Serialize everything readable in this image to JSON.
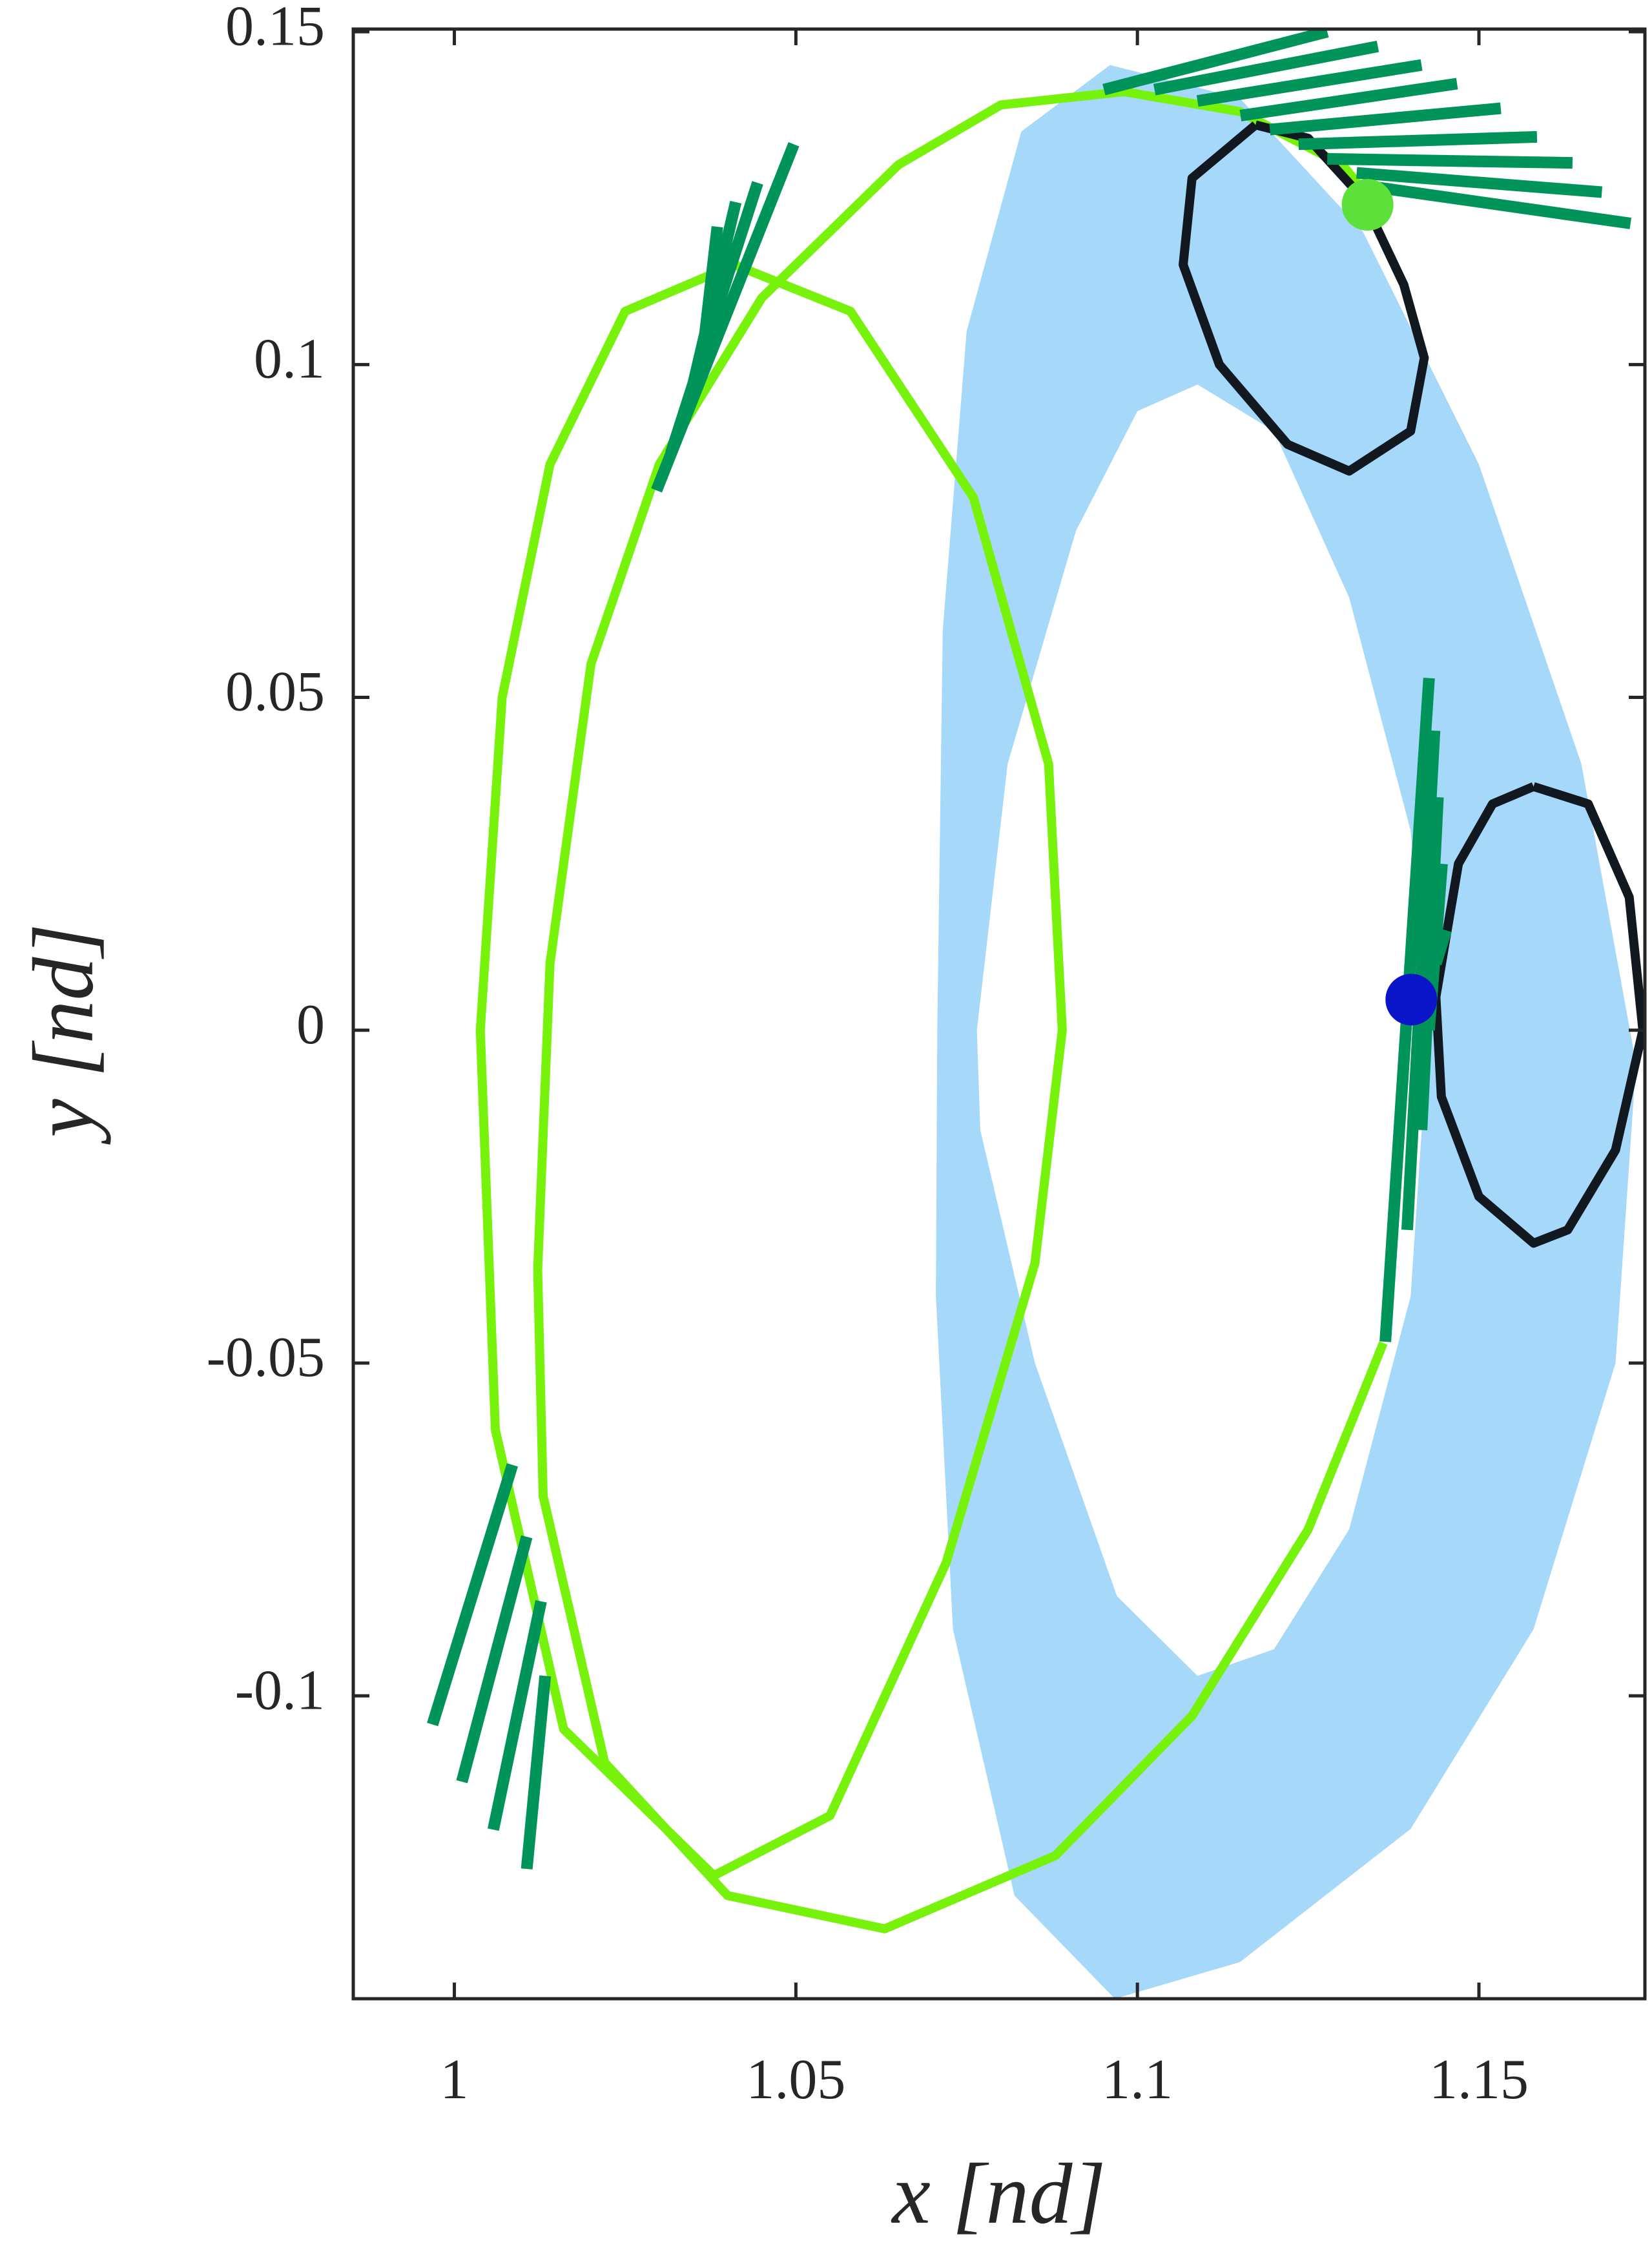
{
  "chart_data": {
    "type": "line",
    "xlabel": "x [nd]",
    "ylabel": "y [nd]",
    "xlim": [
      0.9852,
      1.1743
    ],
    "ylim": [
      -0.1455,
      0.1504
    ],
    "xticks": [
      1,
      1.05,
      1.1,
      1.15
    ],
    "yticks": [
      -0.1,
      -0.05,
      0,
      0.05,
      0.1,
      0.15
    ],
    "series": [
      {
        "kind": "area",
        "color": "#a6d8fa",
        "x": [
          1.096,
          1.115,
          1.133,
          1.15,
          1.165,
          1.173,
          1.17,
          1.158,
          1.14,
          1.115,
          1.0967,
          1.082,
          1.073,
          1.0705,
          1.0707,
          1.0715,
          1.075,
          1.083,
          1.096
        ],
        "y": [
          0.145,
          0.14,
          0.12,
          0.085,
          0.04,
          -0.005,
          -0.05,
          -0.09,
          -0.12,
          -0.14,
          -0.1455,
          -0.13,
          -0.09,
          -0.04,
          0.0,
          0.06,
          0.105,
          0.135,
          0.145
        ]
      },
      {
        "kind": "area",
        "color": "#ffffff",
        "x": [
          1.1088,
          1.12,
          1.131,
          1.14,
          1.1426,
          1.14,
          1.131,
          1.12,
          1.1088,
          1.097,
          1.085,
          1.077,
          1.0765,
          1.081,
          1.091,
          1.1,
          1.1088
        ],
        "y": [
          0.097,
          0.09,
          0.065,
          0.03,
          0,
          -0.04,
          -0.075,
          -0.093,
          -0.097,
          -0.085,
          -0.05,
          -0.015,
          0.0,
          0.04,
          0.075,
          0.093,
          0.097
        ]
      },
      {
        "kind": "line",
        "color": "#77f20a",
        "x": [
          1.041,
          1.025,
          1.014,
          1.007,
          1.0038,
          1.006,
          1.016,
          1.038,
          1.055,
          1.072,
          1.085,
          1.089,
          1.087,
          1.076,
          1.058,
          1.041
        ],
        "y": [
          0.115,
          0.108,
          0.085,
          0.05,
          0,
          -0.06,
          -0.105,
          -0.127,
          -0.118,
          -0.08,
          -0.035,
          0.0,
          0.04,
          0.08,
          0.108,
          0.115
        ]
      },
      {
        "kind": "line",
        "color": "#77f20a",
        "x": [
          1.136,
          1.125,
          1.108,
          1.088,
          1.063,
          1.04,
          1.022,
          1.013,
          1.0122,
          1.014,
          1.02,
          1.03,
          1.045,
          1.065,
          1.08,
          1.098,
          1.115,
          1.13,
          1.134
        ],
        "y": [
          -0.047,
          -0.075,
          -0.103,
          -0.124,
          -0.135,
          -0.13,
          -0.11,
          -0.07,
          -0.036,
          0.01,
          0.055,
          0.085,
          0.11,
          0.13,
          0.139,
          0.141,
          0.138,
          0.13,
          0.125
        ]
      },
      {
        "kind": "line",
        "color": "#111820",
        "x": [
          1.1173,
          1.125,
          1.133,
          1.139,
          1.142,
          1.14,
          1.131,
          1.122,
          1.112,
          1.1067,
          1.108,
          1.1173
        ],
        "y": [
          0.136,
          0.134,
          0.125,
          0.112,
          0.101,
          0.09,
          0.084,
          0.088,
          0.1,
          0.115,
          0.128,
          0.136
        ]
      },
      {
        "kind": "line",
        "color": "#111820",
        "x": [
          1.158,
          1.166,
          1.172,
          1.174,
          1.17,
          1.163,
          1.158,
          1.15,
          1.1445,
          1.1437,
          1.147,
          1.152,
          1.158
        ],
        "y": [
          0.0366,
          0.034,
          0.02,
          0.0,
          -0.018,
          -0.03,
          -0.032,
          -0.025,
          -0.01,
          0.005,
          0.025,
          0.034,
          0.0366
        ]
      },
      {
        "kind": "segments",
        "color": "#00945a",
        "x": [
          1.0951,
          1.1278,
          1.1025,
          1.1352,
          1.1088,
          1.1416,
          1.1151,
          1.1468,
          1.1194,
          1.1532,
          1.1236,
          1.1585,
          1.1278,
          1.1637,
          1.1321,
          1.168,
          1.1352,
          1.1722,
          1.0296,
          1.0497,
          1.0317,
          1.0444,
          1.0338,
          1.0412,
          1.0359,
          1.0385,
          1.0085,
          0.9968,
          1.0106,
          1.0011,
          1.0127,
          1.0057,
          1.0133,
          1.0106,
          1.1363,
          1.1427,
          1.1395,
          1.1435,
          1.1416,
          1.144,
          1.1427,
          1.1446,
          1.1437,
          1.1452
        ],
        "y": [
          0.1413,
          0.15,
          0.1413,
          0.1478,
          0.1396,
          0.145,
          0.1374,
          0.1422,
          0.1353,
          0.1385,
          0.1331,
          0.1342,
          0.1309,
          0.1303,
          0.1288,
          0.1259,
          0.1266,
          0.1212,
          0.0811,
          0.1331,
          0.0867,
          0.1273,
          0.092,
          0.1244,
          0.0975,
          0.1207,
          -0.0653,
          -0.1043,
          -0.0761,
          -0.1129,
          -0.0858,
          -0.1201,
          -0.097,
          -0.126,
          -0.0468,
          0.0529,
          -0.03,
          0.045,
          -0.015,
          0.035,
          0.0,
          0.025,
          0.01,
          0.015
        ]
      },
      {
        "kind": "marker",
        "color": "#5ee03a",
        "x": [
          1.1337
        ],
        "y": [
          0.124
        ]
      },
      {
        "kind": "marker",
        "color": "#0a14c8",
        "x": [
          1.1401
        ],
        "y": [
          0.0046
        ]
      }
    ]
  }
}
